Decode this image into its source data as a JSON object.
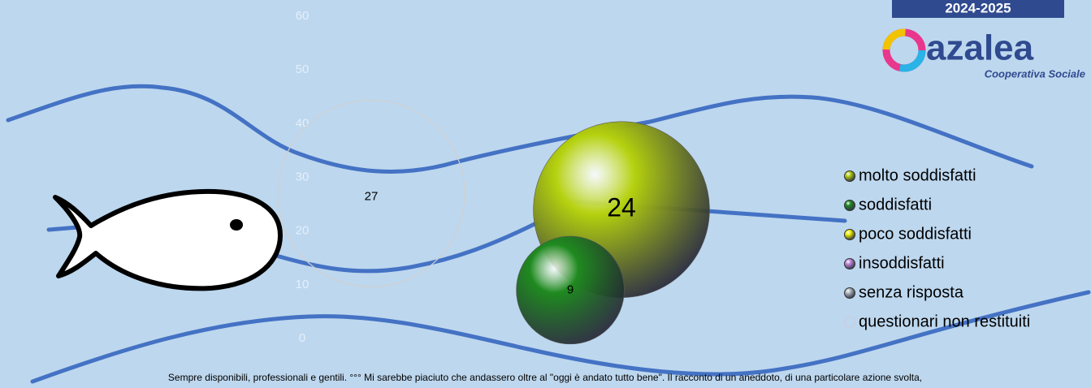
{
  "chart_data": {
    "type": "bubble",
    "ylim": [
      0,
      60
    ],
    "yticks": [
      0,
      10,
      20,
      30,
      40,
      50,
      60
    ],
    "xlim": [
      0,
      10
    ],
    "series": [
      {
        "name": "molto soddisfatti",
        "color": "#b5d10e",
        "filled": true,
        "x": [
          5.5
        ],
        "values": [
          24
        ],
        "sizes": [
          24
        ]
      },
      {
        "name": "soddisfatti",
        "color": "#1f8a1f",
        "filled": true,
        "x": [
          4.6
        ],
        "values": [
          9
        ],
        "sizes": [
          9
        ]
      },
      {
        "name": "poco soddisfatti",
        "color": "#f2f200",
        "filled": true,
        "x": [],
        "values": [],
        "sizes": []
      },
      {
        "name": "insoddisfatti",
        "color": "#c58be0",
        "filled": true,
        "x": [],
        "values": [],
        "sizes": []
      },
      {
        "name": "senza risposta",
        "color": "#b0b8c0",
        "filled": true,
        "x": [],
        "values": [],
        "sizes": []
      },
      {
        "name": "questionari non restituiti",
        "color": "#d0d0d0",
        "filled": false,
        "x": [
          1.1
        ],
        "values": [
          27
        ],
        "sizes": [
          27
        ]
      }
    ]
  },
  "logo": {
    "years": "2024-2025",
    "name": "azalea",
    "subtitle": "Cooperativa Sociale"
  },
  "footer": "Sempre disponibili, professionali e gentili. °°° Mi sarebbe piaciuto che andassero  oltre al \"oggi è andato tutto bene\". Il racconto di un aneddoto, di una particolare azione svolta,"
}
